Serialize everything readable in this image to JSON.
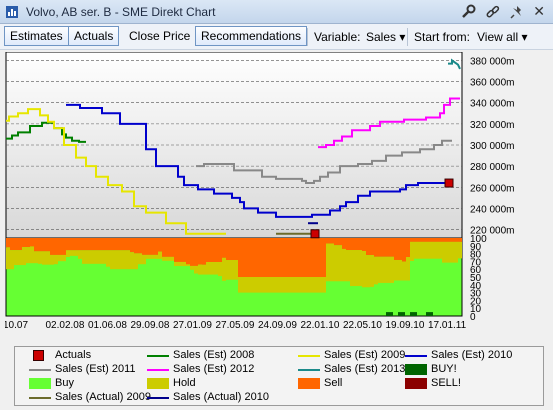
{
  "window": {
    "title": "Volvo, AB ser. B - SME Direkt Chart",
    "close_glyph": "✕"
  },
  "toolbar": {
    "estimates": "Estimates",
    "actuals": "Actuals",
    "close_price": "Close Price",
    "recommendations": "Recommendations",
    "variable_label": "Variable:",
    "variable_value": "Sales",
    "start_label": "Start from:",
    "start_value": "View all"
  },
  "chart_data": {
    "type": "line",
    "x_ticks": [
      "10.07",
      "02.02.08",
      "01.06.08",
      "29.09.08",
      "27.01.09",
      "27.05.09",
      "24.09.09",
      "22.01.10",
      "22.05.10",
      "19.09.10",
      "17.01.11"
    ],
    "y_axis": {
      "ticks": [
        "380 000m",
        "360 000m",
        "340 000m",
        "320 000m",
        "300 000m",
        "280 000m",
        "260 000m",
        "240 000m",
        "220 000m"
      ],
      "range": [
        212000,
        388000
      ],
      "grid": "dashed"
    },
    "rec_axis": {
      "ticks": [
        "100",
        "90",
        "80",
        "70",
        "60",
        "50",
        "40",
        "30",
        "20",
        "10",
        "0"
      ],
      "range": [
        0,
        100
      ]
    },
    "series": [
      {
        "name": "Sales (Est) 2008",
        "color": "#008000",
        "points": [
          [
            0,
            306000
          ],
          [
            6,
            306000
          ],
          [
            6,
            309000
          ],
          [
            12,
            309000
          ],
          [
            12,
            312000
          ],
          [
            24,
            312000
          ],
          [
            24,
            318000
          ],
          [
            36,
            318000
          ],
          [
            36,
            321000
          ],
          [
            48,
            321000
          ],
          [
            48,
            316000
          ],
          [
            56,
            316000
          ],
          [
            56,
            310000
          ],
          [
            60,
            310000
          ],
          [
            60,
            307000
          ],
          [
            66,
            307000
          ],
          [
            66,
            304000
          ],
          [
            73,
            304000
          ],
          [
            73,
            303000
          ],
          [
            80,
            303000
          ]
        ]
      },
      {
        "name": "Sales (Est) 2009",
        "color": "#e6e600",
        "points": [
          [
            0,
            323000
          ],
          [
            3,
            323000
          ],
          [
            3,
            327000
          ],
          [
            12,
            327000
          ],
          [
            12,
            330000
          ],
          [
            22,
            330000
          ],
          [
            22,
            334000
          ],
          [
            34,
            334000
          ],
          [
            34,
            328000
          ],
          [
            42,
            328000
          ],
          [
            42,
            322000
          ],
          [
            48,
            322000
          ],
          [
            48,
            316000
          ],
          [
            58,
            316000
          ],
          [
            58,
            300000
          ],
          [
            70,
            300000
          ],
          [
            70,
            288000
          ],
          [
            80,
            288000
          ],
          [
            80,
            280000
          ],
          [
            90,
            280000
          ],
          [
            90,
            270000
          ],
          [
            102,
            270000
          ],
          [
            102,
            262000
          ],
          [
            116,
            262000
          ],
          [
            116,
            256000
          ],
          [
            128,
            256000
          ],
          [
            128,
            242000
          ],
          [
            140,
            242000
          ],
          [
            140,
            236000
          ],
          [
            160,
            236000
          ],
          [
            160,
            226000
          ],
          [
            180,
            226000
          ],
          [
            180,
            216000
          ],
          [
            220,
            216000
          ]
        ]
      },
      {
        "name": "Sales (Est) 2010",
        "color": "#0000cc",
        "points": [
          [
            60,
            338000
          ],
          [
            74,
            338000
          ],
          [
            74,
            335000
          ],
          [
            96,
            335000
          ],
          [
            96,
            330000
          ],
          [
            114,
            330000
          ],
          [
            114,
            320000
          ],
          [
            140,
            320000
          ],
          [
            140,
            296000
          ],
          [
            150,
            296000
          ],
          [
            150,
            280000
          ],
          [
            172,
            280000
          ],
          [
            172,
            270000
          ],
          [
            178,
            270000
          ],
          [
            178,
            262000
          ],
          [
            192,
            262000
          ],
          [
            192,
            258000
          ],
          [
            208,
            258000
          ],
          [
            208,
            254000
          ],
          [
            226,
            254000
          ],
          [
            226,
            250000
          ],
          [
            234,
            250000
          ],
          [
            234,
            246000
          ],
          [
            238,
            246000
          ],
          [
            238,
            240000
          ],
          [
            252,
            240000
          ],
          [
            252,
            236000
          ],
          [
            270,
            236000
          ],
          [
            270,
            232000
          ],
          [
            306,
            232000
          ],
          [
            306,
            234000
          ],
          [
            324,
            234000
          ],
          [
            324,
            238000
          ],
          [
            334,
            238000
          ],
          [
            334,
            242000
          ],
          [
            340,
            242000
          ],
          [
            340,
            246000
          ],
          [
            352,
            246000
          ],
          [
            352,
            252000
          ],
          [
            364,
            252000
          ],
          [
            364,
            256000
          ],
          [
            394,
            256000
          ],
          [
            394,
            258000
          ],
          [
            400,
            258000
          ],
          [
            400,
            262000
          ],
          [
            412,
            262000
          ],
          [
            412,
            264000
          ],
          [
            440,
            264000
          ]
        ]
      },
      {
        "name": "Sales (Est) 2011",
        "color": "#888888",
        "points": [
          [
            190,
            280000
          ],
          [
            198,
            280000
          ],
          [
            198,
            282000
          ],
          [
            228,
            282000
          ],
          [
            228,
            276000
          ],
          [
            256,
            276000
          ],
          [
            256,
            270000
          ],
          [
            270,
            270000
          ],
          [
            270,
            268000
          ],
          [
            296,
            268000
          ],
          [
            296,
            266000
          ],
          [
            300,
            266000
          ],
          [
            300,
            264000
          ],
          [
            308,
            264000
          ],
          [
            308,
            266000
          ],
          [
            314,
            266000
          ],
          [
            314,
            270000
          ],
          [
            322,
            270000
          ],
          [
            322,
            274000
          ],
          [
            334,
            274000
          ],
          [
            334,
            280000
          ],
          [
            352,
            280000
          ],
          [
            352,
            282000
          ],
          [
            366,
            282000
          ],
          [
            366,
            285000
          ],
          [
            380,
            285000
          ],
          [
            380,
            290000
          ],
          [
            396,
            290000
          ],
          [
            396,
            293000
          ],
          [
            414,
            293000
          ],
          [
            414,
            296000
          ],
          [
            428,
            296000
          ],
          [
            428,
            300000
          ],
          [
            436,
            300000
          ],
          [
            436,
            304000
          ],
          [
            446,
            304000
          ]
        ]
      },
      {
        "name": "Sales (Est) 2012",
        "color": "#ff00ff",
        "points": [
          [
            312,
            298000
          ],
          [
            320,
            298000
          ],
          [
            320,
            300000
          ],
          [
            328,
            300000
          ],
          [
            328,
            304000
          ],
          [
            336,
            304000
          ],
          [
            336,
            308000
          ],
          [
            346,
            308000
          ],
          [
            346,
            314000
          ],
          [
            364,
            314000
          ],
          [
            364,
            318000
          ],
          [
            374,
            318000
          ],
          [
            374,
            322000
          ],
          [
            398,
            322000
          ],
          [
            398,
            324000
          ],
          [
            420,
            324000
          ],
          [
            420,
            326000
          ],
          [
            434,
            326000
          ],
          [
            434,
            330000
          ],
          [
            438,
            330000
          ],
          [
            438,
            338000
          ],
          [
            444,
            338000
          ],
          [
            444,
            344000
          ],
          [
            454,
            344000
          ]
        ]
      },
      {
        "name": "Sales (Est) 2013",
        "color": "#1b8a8a",
        "points": [
          [
            442,
            377000
          ],
          [
            446,
            377000
          ],
          [
            446,
            380000
          ],
          [
            452,
            376000
          ],
          [
            454,
            372000
          ]
        ]
      },
      {
        "name": "Sales (Actual) 2009",
        "color": "#6b6b2b",
        "points": [
          [
            270,
            216000
          ],
          [
            312,
            216000
          ]
        ]
      },
      {
        "name": "Sales (Actual) 2010",
        "color": "#00008b",
        "points": [
          [
            302,
            226000
          ],
          [
            312,
            226000
          ]
        ]
      }
    ],
    "actuals": [
      {
        "name": "Actuals",
        "x": 309,
        "y": 216000
      },
      {
        "name": "Actuals",
        "x": 443,
        "y": 264000
      }
    ],
    "recommendations_legend": [
      {
        "name": "Buy",
        "color": "#66ff33"
      },
      {
        "name": "Hold",
        "color": "#cccc00"
      },
      {
        "name": "Sell",
        "color": "#ff6600"
      },
      {
        "name": "BUY!",
        "color": "#006400"
      },
      {
        "name": "SELL!",
        "color": "#8b0000"
      }
    ]
  },
  "legend": [
    {
      "name": "Actuals",
      "kind": "box",
      "color": "#cc0000"
    },
    {
      "name": "Sales (Est) 2008",
      "kind": "line",
      "color": "#008000"
    },
    {
      "name": "Sales (Est) 2009",
      "kind": "line",
      "color": "#e6e600"
    },
    {
      "name": "Sales (Est) 2010",
      "kind": "line",
      "color": "#0000cc"
    },
    {
      "name": "Sales (Est) 2011",
      "kind": "line",
      "color": "#888888"
    },
    {
      "name": "Sales (Est) 2012",
      "kind": "line",
      "color": "#ff00ff"
    },
    {
      "name": "Sales (Est) 2013",
      "kind": "line",
      "color": "#1b8a8a"
    },
    {
      "name": "BUY!",
      "kind": "fill",
      "color": "#006400"
    },
    {
      "name": "Buy",
      "kind": "fill",
      "color": "#66ff33"
    },
    {
      "name": "Hold",
      "kind": "fill",
      "color": "#cccc00"
    },
    {
      "name": "Sell",
      "kind": "fill",
      "color": "#ff6600"
    },
    {
      "name": "SELL!",
      "kind": "fill",
      "color": "#8b0000"
    },
    {
      "name": "Sales (Actual) 2009",
      "kind": "line",
      "color": "#6b6b2b"
    },
    {
      "name": "Sales (Actual) 2010",
      "kind": "line",
      "color": "#00008b"
    }
  ]
}
